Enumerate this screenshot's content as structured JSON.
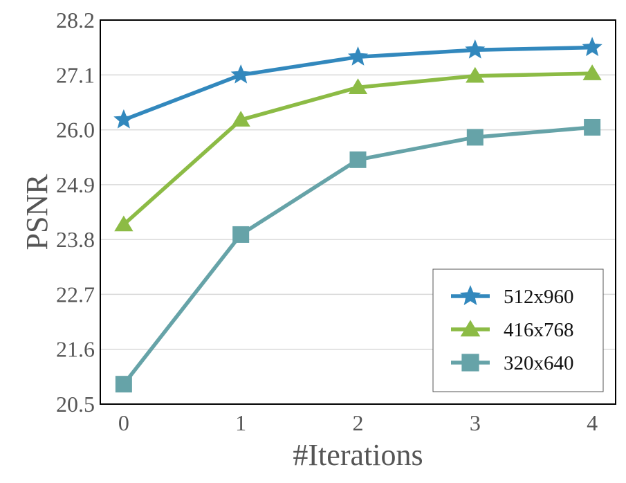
{
  "chart_data": {
    "type": "line",
    "xlabel": "#Iterations",
    "ylabel": "PSNR",
    "x": [
      0,
      1,
      2,
      3,
      4
    ],
    "xlim": [
      -0.2,
      4.2
    ],
    "ylim": [
      20.5,
      28.2
    ],
    "yticks": [
      "20.5",
      "21.6",
      "22.7",
      "23.8",
      "24.9",
      "26.0",
      "27.1",
      "28.2"
    ],
    "xticks": [
      "0",
      "1",
      "2",
      "3",
      "4"
    ],
    "grid": "horizontal",
    "legend_position": "bottom-right",
    "series": [
      {
        "name": "512x960",
        "values": [
          26.2,
          27.1,
          27.46,
          27.6,
          27.65
        ],
        "color": "#3288bd",
        "marker": "star"
      },
      {
        "name": "416x768",
        "values": [
          24.1,
          26.2,
          26.85,
          27.08,
          27.13
        ],
        "color": "#8cbb45",
        "marker": "triangle"
      },
      {
        "name": "320x640",
        "values": [
          20.9,
          23.9,
          25.4,
          25.85,
          26.05
        ],
        "color": "#66a3a8",
        "marker": "square"
      }
    ]
  }
}
